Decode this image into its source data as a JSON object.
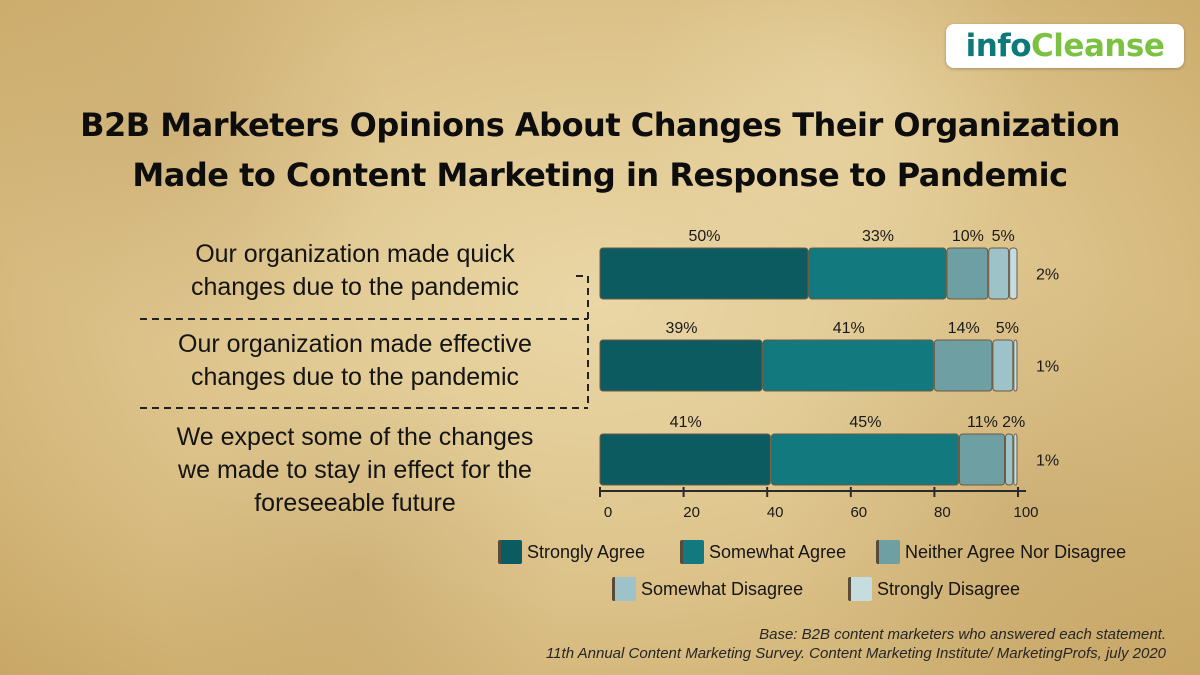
{
  "logo": {
    "part1": "info",
    "part2": "Cleanse"
  },
  "title": {
    "line1": "B2B Marketers Opinions About Changes Their Organization",
    "line2": "Made to Content Marketing in Response to Pandemic"
  },
  "statements": [
    [
      "Our organization made quick",
      "changes due to the pandemic"
    ],
    [
      "Our organization made effective",
      "changes due to the pandemic"
    ],
    [
      "We expect some of the changes",
      "we made to stay in effect for the",
      "foreseeable future"
    ]
  ],
  "colors": {
    "Strongly Agree": "#0c5b60",
    "Somewhat Agree": "#127a7e",
    "Neither Agree Nor Disagree": "#6e9fa2",
    "Somewhat Disagree": "#9dc2c8",
    "Strongly Disagree": "#c6dde0"
  },
  "chart_data": {
    "type": "bar",
    "orientation": "horizontal-stacked",
    "categories": [
      "Our organization made quick changes due to the pandemic",
      "Our organization made effective changes due to the pandemic",
      "We expect some of the changes we made to stay in effect for the foreseeable future"
    ],
    "series": [
      {
        "name": "Strongly Agree",
        "values": [
          50,
          39,
          41
        ]
      },
      {
        "name": "Somewhat Agree",
        "values": [
          33,
          41,
          45
        ]
      },
      {
        "name": "Neither Agree Nor Disagree",
        "values": [
          10,
          14,
          11
        ]
      },
      {
        "name": "Somewhat Disagree",
        "values": [
          5,
          5,
          2
        ]
      },
      {
        "name": "Strongly Disagree",
        "values": [
          2,
          1,
          1
        ]
      }
    ],
    "value_labels": [
      [
        "50%",
        "33%",
        "10%",
        "5%",
        "2%"
      ],
      [
        "39%",
        "41%",
        "14%",
        "5%",
        "1%"
      ],
      [
        "41%",
        "45%",
        "11%",
        "2%",
        "1%"
      ]
    ],
    "xlim": [
      0,
      100
    ],
    "xticks": [
      0,
      20,
      40,
      60,
      80,
      100
    ],
    "legend_position": "bottom"
  },
  "footnote": {
    "line1": "Base: B2B content marketers who answered each statement.",
    "line2": "11th Annual Content Marketing Survey. Content Marketing Institute/ MarketingProfs, july 2020"
  }
}
